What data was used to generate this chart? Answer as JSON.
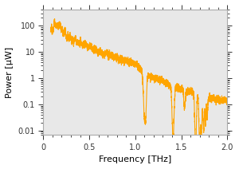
{
  "title": "",
  "xlabel": "Frequency [THz]",
  "ylabel": "Power [μW]",
  "xlim": [
    0,
    2.0
  ],
  "ylim_log": [
    0.007,
    400
  ],
  "line_color": "#FFA500",
  "line_width": 0.8,
  "background_color": "#ffffff",
  "plot_bg_color": "#e8e8e8",
  "yticks": [
    0.01,
    0.1,
    1,
    10,
    100
  ],
  "ytick_labels": [
    "0.01",
    "0.1",
    "1",
    "10",
    "100"
  ],
  "xticks": [
    0,
    0.5,
    1.0,
    1.5,
    2.0
  ],
  "xtick_labels": [
    "0",
    "0.5",
    "1.0",
    "1.5",
    "2.0"
  ],
  "tick_fontsize": 7,
  "label_fontsize": 8
}
